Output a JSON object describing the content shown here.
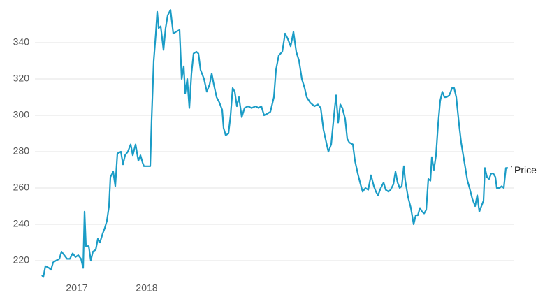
{
  "chart_data": {
    "type": "line",
    "x": [
      2016.5,
      2016.52,
      2016.55,
      2016.6,
      2016.63,
      2016.66,
      2016.7,
      2016.75,
      2016.78,
      2016.82,
      2016.86,
      2016.9,
      2016.94,
      2016.98,
      2017.02,
      2017.06,
      2017.09,
      2017.11,
      2017.13,
      2017.17,
      2017.2,
      2017.23,
      2017.27,
      2017.3,
      2017.33,
      2017.37,
      2017.4,
      2017.43,
      2017.46,
      2017.48,
      2017.52,
      2017.55,
      2017.58,
      2017.63,
      2017.66,
      2017.69,
      2017.73,
      2017.77,
      2017.8,
      2017.84,
      2017.88,
      2017.91,
      2017.94,
      2017.96,
      2017.99,
      2018.02,
      2018.05,
      2018.07,
      2018.1,
      2018.13,
      2018.15,
      2018.17,
      2018.2,
      2018.24,
      2018.27,
      2018.3,
      2018.34,
      2018.38,
      2018.42,
      2018.47,
      2018.5,
      2018.53,
      2018.55,
      2018.58,
      2018.61,
      2018.64,
      2018.67,
      2018.71,
      2018.74,
      2018.77,
      2018.82,
      2018.86,
      2018.9,
      2018.93,
      2018.96,
      2019.0,
      2019.04,
      2019.08,
      2019.1,
      2019.13,
      2019.17,
      2019.2,
      2019.23,
      2019.26,
      2019.29,
      2019.32,
      2019.36,
      2019.4,
      2019.45,
      2019.5,
      2019.56,
      2019.6,
      2019.64,
      2019.68,
      2019.73,
      2019.77,
      2019.82,
      2019.85,
      2019.89,
      2019.94,
      2019.98,
      2020.02,
      2020.06,
      2020.1,
      2020.14,
      2020.18,
      2020.22,
      2020.26,
      2020.29,
      2020.34,
      2020.4,
      2020.45,
      2020.49,
      2020.53,
      2020.57,
      2020.6,
      2020.64,
      2020.68,
      2020.71,
      2020.74,
      2020.77,
      2020.8,
      2020.84,
      2020.87,
      2020.9,
      2020.95,
      2020.98,
      2021.02,
      2021.06,
      2021.09,
      2021.13,
      2021.17,
      2021.21,
      2021.25,
      2021.28,
      2021.31,
      2021.35,
      2021.39,
      2021.42,
      2021.46,
      2021.49,
      2021.53,
      2021.56,
      2021.59,
      2021.62,
      2021.65,
      2021.68,
      2021.7,
      2021.74,
      2021.78,
      2021.82,
      2021.85,
      2021.88,
      2021.91,
      2021.94,
      2021.97,
      2022.0,
      2022.03,
      2022.06,
      2022.08,
      2022.11,
      2022.14,
      2022.17,
      2022.2,
      2022.23,
      2022.26,
      2022.29,
      2022.33,
      2022.37,
      2022.4,
      2022.43,
      2022.47,
      2022.5,
      2022.53,
      2022.56,
      2022.59,
      2022.62,
      2022.66,
      2022.7,
      2022.73,
      2022.76,
      2022.79,
      2022.82,
      2022.84,
      2022.87,
      2022.9,
      2022.93,
      2022.96,
      2022.99,
      2023.01,
      2023.05,
      2023.08,
      2023.11,
      2023.14,
      2023.17
    ],
    "series": [
      {
        "name": "Price",
        "color": "#1b9cc6",
        "values": [
          212,
          211,
          217,
          216,
          215,
          219,
          220,
          221,
          225,
          223,
          221,
          221,
          224,
          222,
          223,
          221,
          216,
          247,
          228,
          228,
          220,
          225,
          226,
          232,
          230,
          235,
          238,
          242,
          250,
          266,
          269,
          261,
          279,
          280,
          273,
          278,
          280,
          284,
          278,
          284,
          275,
          278,
          274,
          272,
          272,
          272,
          272,
          298,
          330,
          345,
          357,
          348,
          349,
          336,
          348,
          355,
          358,
          345,
          346,
          347,
          320,
          327,
          312,
          320,
          304,
          323,
          334,
          335,
          334,
          325,
          320,
          313,
          317,
          323,
          317,
          310,
          307,
          303,
          293,
          289,
          290,
          300,
          315,
          313,
          305,
          310,
          299,
          304,
          305,
          304,
          305,
          304,
          305,
          300,
          301,
          302,
          310,
          325,
          333,
          335,
          345,
          342,
          338,
          346,
          335,
          330,
          320,
          315,
          310,
          307,
          305,
          306,
          304,
          292,
          285,
          280,
          284,
          300,
          311,
          296,
          306,
          304,
          298,
          287,
          285,
          284,
          275,
          268,
          262,
          258,
          260,
          259,
          267,
          261,
          258,
          256,
          260,
          263,
          259,
          258,
          259,
          262,
          269,
          263,
          260,
          261,
          272,
          264,
          255,
          249,
          240,
          245,
          245,
          249,
          247,
          246,
          248,
          265,
          264,
          277,
          270,
          278,
          295,
          308,
          313,
          310,
          310,
          311,
          315,
          315,
          310,
          295,
          285,
          278,
          271,
          264,
          260,
          254,
          250,
          256,
          247,
          250,
          253,
          271,
          266,
          265,
          268,
          268,
          266,
          260,
          260,
          261,
          260,
          271,
          271
        ]
      }
    ],
    "xlim": [
      2016.5,
      2023.25
    ],
    "xticks": [
      2017,
      2018
    ],
    "ylim": [
      210,
      360
    ],
    "yticks": [
      220,
      240,
      260,
      280,
      300,
      320,
      340
    ],
    "grid": true
  }
}
